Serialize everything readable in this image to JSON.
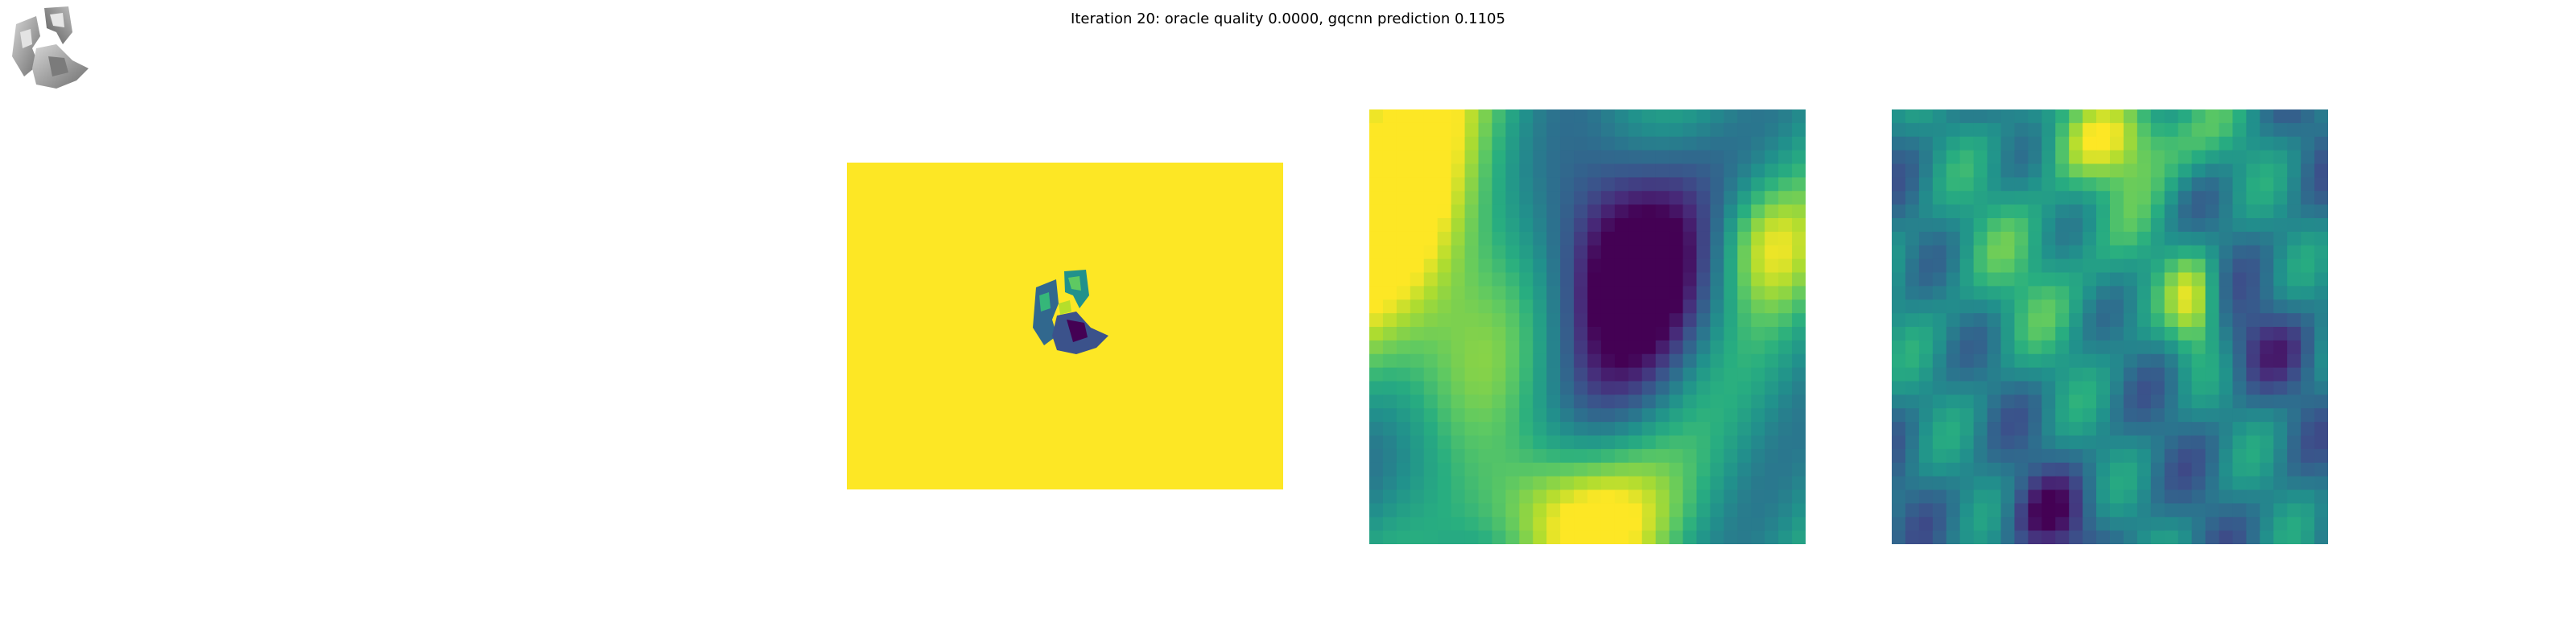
{
  "figure": {
    "title": "Iteration 20: oracle quality 0.0000, gqcnn prediction 0.1105"
  },
  "colors": {
    "background": "#ffffff",
    "viridis_dark": "#440154",
    "viridis_blue": "#31688e",
    "viridis_teal": "#21918c",
    "viridis_green": "#35b779",
    "viridis_yellow": "#fde725",
    "object_gray": "#9a9a9a"
  },
  "panels": [
    {
      "id": "rendered-object",
      "content": "grayscale rendered object"
    },
    {
      "id": "depth-image",
      "content": "viridis depth image with object"
    },
    {
      "id": "cropped-depth",
      "content": "zoomed viridis depth crop"
    },
    {
      "id": "cropped-gradient",
      "content": "zoomed viridis gradient crop"
    }
  ]
}
